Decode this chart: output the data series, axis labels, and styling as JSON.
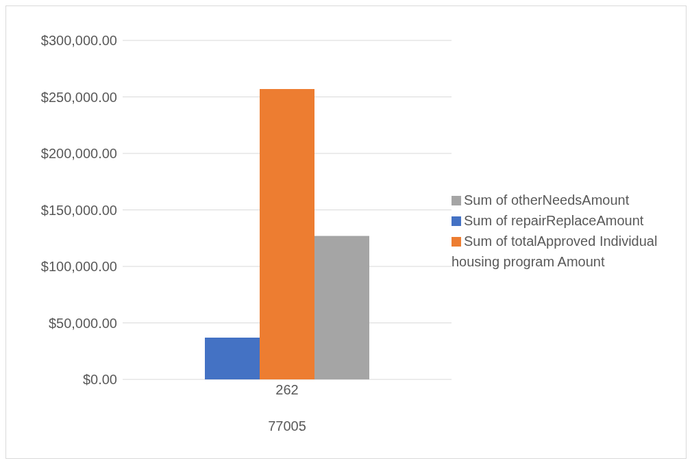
{
  "chart_data": {
    "type": "bar",
    "categories": [
      "262"
    ],
    "xlabel": "77005",
    "series": [
      {
        "name": "Sum of repairReplaceAmount",
        "color": "#4472c4",
        "values": [
          37000
        ]
      },
      {
        "name": "Sum of totalApproved Individual housing program Amount",
        "color": "#ed7d31",
        "values": [
          257000
        ]
      },
      {
        "name": "Sum of otherNeedsAmount",
        "color": "#a5a5a5",
        "values": [
          127000
        ]
      }
    ],
    "ylim": [
      0,
      300000
    ],
    "yticks": [
      {
        "value": 0,
        "label": "$0.00"
      },
      {
        "value": 50000,
        "label": "$50,000.00"
      },
      {
        "value": 100000,
        "label": "$100,000.00"
      },
      {
        "value": 150000,
        "label": "$150,000.00"
      },
      {
        "value": 200000,
        "label": "$200,000.00"
      },
      {
        "value": 250000,
        "label": "$250,000.00"
      },
      {
        "value": 300000,
        "label": "$300,000.00"
      }
    ],
    "grid": "y",
    "legend": "right"
  }
}
